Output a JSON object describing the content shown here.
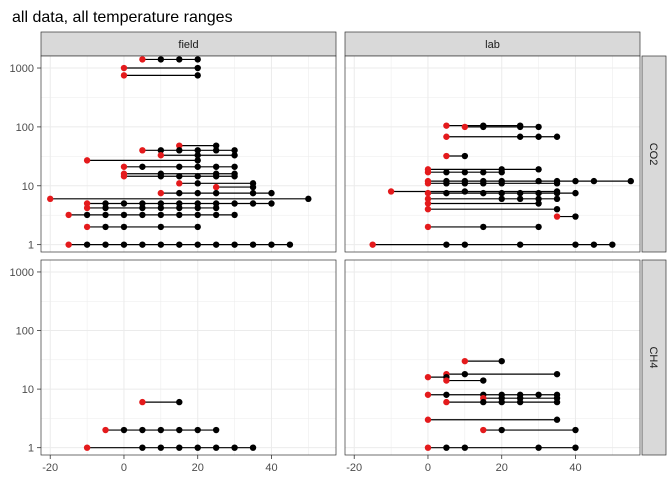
{
  "chart_data": {
    "type": "scatter",
    "title": "all data, all temperature ranges",
    "facet_columns": [
      "field",
      "lab"
    ],
    "facet_rows": [
      "CO2",
      "CH4"
    ],
    "x_ticks": [
      -20,
      0,
      20,
      40
    ],
    "xlim": [
      -22.5,
      57.5
    ],
    "y_scale": "log10",
    "y_ticks": [
      1,
      10,
      100,
      1000
    ],
    "ylim": [
      0.75,
      1600
    ],
    "grid": true,
    "colors": {
      "first_point": "#e41a1c",
      "other_points": "#000000",
      "segment": "#000000",
      "strip_fill": "#d9d9d9",
      "panel_border": "#333333",
      "grid": "#ebebeb"
    },
    "panels": [
      {
        "column": "field",
        "row": "CO2",
        "series": [
          {
            "y": 1400,
            "x": [
              5,
              10,
              15,
              20
            ]
          },
          {
            "y": 1000,
            "x": [
              0,
              20
            ]
          },
          {
            "y": 750,
            "x": [
              0,
              20
            ]
          },
          {
            "y": 48,
            "x": [
              15,
              25
            ]
          },
          {
            "y": 40,
            "x": [
              5,
              10,
              15,
              20,
              25,
              30
            ]
          },
          {
            "y": 33,
            "x": [
              10,
              20,
              30
            ]
          },
          {
            "y": 27,
            "x": [
              -10,
              20
            ]
          },
          {
            "y": 21,
            "x": [
              0,
              5,
              15,
              20,
              25,
              30
            ]
          },
          {
            "y": 16,
            "x": [
              0,
              10,
              25,
              30
            ]
          },
          {
            "y": 14.5,
            "x": [
              0,
              10,
              15,
              20,
              25,
              30
            ]
          },
          {
            "y": 11,
            "x": [
              15,
              20,
              35
            ]
          },
          {
            "y": 9.5,
            "x": [
              25,
              35
            ]
          },
          {
            "y": 7.5,
            "x": [
              10,
              15,
              20,
              25,
              35,
              40
            ]
          },
          {
            "y": 6,
            "x": [
              -20,
              50
            ]
          },
          {
            "y": 5,
            "x": [
              -10,
              -5,
              0,
              5,
              10,
              15,
              20,
              25,
              30,
              35,
              40
            ]
          },
          {
            "y": 4.2,
            "x": [
              -10,
              -5,
              5,
              10,
              15,
              20,
              25
            ]
          },
          {
            "y": 3.2,
            "x": [
              -15,
              -10,
              -5,
              0,
              5,
              10,
              15,
              20,
              25,
              30
            ]
          },
          {
            "y": 2,
            "x": [
              -10,
              -5,
              0,
              10,
              20
            ]
          },
          {
            "y": 1,
            "x": [
              -15,
              -10,
              -5,
              0,
              5,
              10,
              15,
              20,
              25,
              30,
              35,
              40,
              45
            ]
          }
        ]
      },
      {
        "column": "lab",
        "row": "CO2",
        "series": [
          {
            "y": 105,
            "x": [
              5,
              15,
              25
            ]
          },
          {
            "y": 100,
            "x": [
              10,
              15,
              25,
              30
            ]
          },
          {
            "y": 68,
            "x": [
              5,
              25,
              30,
              35
            ]
          },
          {
            "y": 32,
            "x": [
              5,
              10
            ]
          },
          {
            "y": 19,
            "x": [
              0,
              20,
              30
            ]
          },
          {
            "y": 17,
            "x": [
              0,
              5,
              10,
              15,
              20
            ]
          },
          {
            "y": 12,
            "x": [
              0,
              5,
              10,
              15,
              20,
              30,
              35,
              40,
              45,
              55
            ]
          },
          {
            "y": 11,
            "x": [
              0,
              5,
              10,
              15,
              20,
              35
            ]
          },
          {
            "y": 8,
            "x": [
              -10,
              10,
              35
            ]
          },
          {
            "y": 7.5,
            "x": [
              0,
              5,
              15,
              20,
              25,
              30,
              35,
              40
            ]
          },
          {
            "y": 6,
            "x": [
              0,
              20,
              25,
              30,
              35
            ]
          },
          {
            "y": 5,
            "x": [
              0,
              30
            ]
          },
          {
            "y": 4,
            "x": [
              0,
              35
            ]
          },
          {
            "y": 3,
            "x": [
              35,
              40
            ]
          },
          {
            "y": 2,
            "x": [
              0,
              15,
              30
            ]
          },
          {
            "y": 1,
            "x": [
              -15,
              5,
              10,
              25,
              40,
              45,
              50
            ]
          }
        ]
      },
      {
        "column": "field",
        "row": "CH4",
        "series": [
          {
            "y": 6,
            "x": [
              5,
              15
            ]
          },
          {
            "y": 2,
            "x": [
              -5,
              0,
              5,
              10,
              15,
              20,
              25
            ]
          },
          {
            "y": 1,
            "x": [
              -10,
              5,
              10,
              15,
              20,
              25,
              30,
              35
            ]
          }
        ]
      },
      {
        "column": "lab",
        "row": "CH4",
        "series": [
          {
            "y": 30,
            "x": [
              10,
              20
            ]
          },
          {
            "y": 18,
            "x": [
              5,
              10,
              35
            ]
          },
          {
            "y": 16,
            "x": [
              0,
              5
            ]
          },
          {
            "y": 14,
            "x": [
              5,
              15
            ]
          },
          {
            "y": 8,
            "x": [
              0,
              5,
              15,
              20,
              25,
              30,
              35
            ]
          },
          {
            "y": 7,
            "x": [
              15,
              20,
              25,
              35
            ]
          },
          {
            "y": 6,
            "x": [
              5,
              15,
              20,
              25,
              35
            ]
          },
          {
            "y": 3,
            "x": [
              0,
              35
            ]
          },
          {
            "y": 2,
            "x": [
              15,
              20,
              40
            ]
          },
          {
            "y": 1,
            "x": [
              0,
              5,
              10,
              30,
              40
            ]
          }
        ]
      }
    ]
  }
}
